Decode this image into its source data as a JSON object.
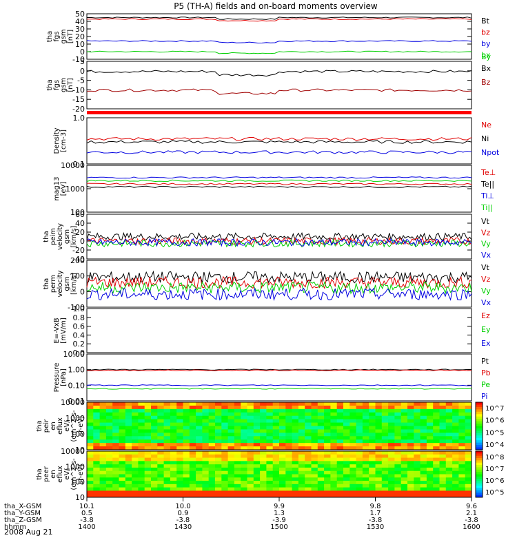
{
  "title": "P5 (TH-A) fields and on-board moments overview",
  "date": "2008 Aug 21",
  "colors": {
    "black": "#000000",
    "red": "#e00000",
    "blue": "#0000e0",
    "green": "#00d000",
    "darkred": "#a00000"
  },
  "chart_data": [
    {
      "id": "fgs",
      "type": "line",
      "ylabel": [
        "tha",
        "fgs",
        "gsm",
        "[nT]"
      ],
      "yticks": [
        "50",
        "40",
        "30",
        "20",
        "10",
        "0",
        "-10"
      ],
      "ylim": [
        -10,
        50
      ],
      "series": [
        {
          "name": "Bt",
          "color": "black",
          "base": 45
        },
        {
          "name": "bz",
          "color": "red",
          "base": 43
        },
        {
          "name": "by",
          "color": "blue",
          "base": 14
        },
        {
          "name": "bx",
          "color": "green",
          "base": 0
        }
      ],
      "extra_label": {
        "name": "By",
        "color": "green"
      }
    },
    {
      "id": "fgs2",
      "type": "line",
      "ylabel": [
        "tha",
        "fgs",
        "gsm",
        "[nT]"
      ],
      "yticks": [
        "5",
        "0",
        "-5",
        "-10",
        "-15",
        "-20"
      ],
      "ylim": [
        -22,
        6
      ],
      "series": [
        {
          "name": "Bx",
          "color": "black",
          "base": 0
        },
        {
          "name": "Bz",
          "color": "darkred",
          "base": -11
        }
      ]
    },
    {
      "id": "density",
      "type": "line",
      "log": true,
      "ylabel": [
        "Density",
        "[cm-3]"
      ],
      "yticks": [
        "1.0",
        "0.1"
      ],
      "ylim": [
        0.1,
        1.0
      ],
      "series": [
        {
          "name": "Ne",
          "color": "red",
          "base": 0.35
        },
        {
          "name": "Ni",
          "color": "black",
          "base": 0.3
        },
        {
          "name": "Npot",
          "color": "blue",
          "base": 0.18
        }
      ]
    },
    {
      "id": "temp",
      "type": "line",
      "log": true,
      "ylabel": [
        "mag13",
        "[eV]"
      ],
      "yticks": [
        "10000",
        "1000",
        "100"
      ],
      "ylim": [
        100,
        10000
      ],
      "series": [
        {
          "name": "Te⊥",
          "color": "red",
          "base": 1600
        },
        {
          "name": "Te||",
          "color": "black",
          "base": 1200
        },
        {
          "name": "Ti⊥",
          "color": "blue",
          "base": 3000
        },
        {
          "name": "Ti||",
          "color": "green",
          "base": 2200
        }
      ]
    },
    {
      "id": "peim",
      "type": "line",
      "ylabel": [
        "tha",
        "peim",
        "velocity",
        "gsm",
        "[km/s]"
      ],
      "yticks": [
        "60",
        "40",
        "20",
        "0",
        "-20",
        "-40"
      ],
      "ylim": [
        -40,
        60
      ],
      "series": [
        {
          "name": "Vt",
          "color": "black",
          "base": 10
        },
        {
          "name": "Vz",
          "color": "red",
          "base": 0
        },
        {
          "name": "Vy",
          "color": "green",
          "base": -5
        },
        {
          "name": "Vx",
          "color": "blue",
          "base": -3
        }
      ]
    },
    {
      "id": "perm",
      "type": "line",
      "ylabel": [
        "tha",
        "perm",
        "velocity",
        "gsm",
        "[km/s]"
      ],
      "yticks": [
        "200",
        "100",
        "0",
        "-100"
      ],
      "ylim": [
        -130,
        230
      ],
      "series": [
        {
          "name": "Vt",
          "color": "black",
          "base": 100
        },
        {
          "name": "Vz",
          "color": "red",
          "base": 60
        },
        {
          "name": "Vy",
          "color": "green",
          "base": 20
        },
        {
          "name": "Vx",
          "color": "blue",
          "base": -30
        }
      ]
    },
    {
      "id": "efield",
      "type": "line",
      "ylabel": [
        "E=-VxB",
        "[mV/m]"
      ],
      "yticks": [
        "1.0",
        "0.8",
        "0.6",
        "0.4",
        "0.2",
        "0.0"
      ],
      "ylim": [
        0,
        1
      ],
      "series": [
        {
          "name": "Ez",
          "color": "red"
        },
        {
          "name": "Ey",
          "color": "green"
        },
        {
          "name": "Ex",
          "color": "blue"
        }
      ]
    },
    {
      "id": "pressure",
      "type": "line",
      "log": true,
      "ylabel": [
        "Pressure",
        "[nPa]"
      ],
      "yticks": [
        "10.00",
        "1.00",
        "0.10",
        "0.01"
      ],
      "ylim": [
        0.01,
        10
      ],
      "series": [
        {
          "name": "Pt",
          "color": "black",
          "base": 1.0
        },
        {
          "name": "Pb",
          "color": "red",
          "base": 0.9
        },
        {
          "name": "Pe",
          "color": "green",
          "base": 0.06
        },
        {
          "name": "Pi",
          "color": "blue",
          "base": 0.1
        }
      ]
    },
    {
      "id": "peir",
      "type": "heatmap",
      "ylabel": [
        "tha",
        "peir",
        "en",
        "eflux",
        "eV/",
        "(cm^2-s-",
        "sr-eV)"
      ],
      "yticks": [
        "10000",
        "1000",
        "100",
        "10"
      ],
      "colorbar": [
        "10^7",
        "10^6",
        "10^5",
        "10^4"
      ]
    },
    {
      "id": "peer",
      "type": "heatmap",
      "ylabel": [
        "tha",
        "peer",
        "en",
        "eflux",
        "eV/",
        "(cm^2-s-",
        "sr-eV)"
      ],
      "yticks": [
        "10000",
        "1000",
        "100",
        "10"
      ],
      "colorbar": [
        "10^8",
        "10^7",
        "10^6",
        "10^5"
      ]
    }
  ],
  "xaxis": {
    "row_labels": [
      "tha_X-GSM",
      "tha_Y-GSM",
      "tha_Z-GSM",
      "hhmm"
    ],
    "columns": [
      {
        "x": "10.1",
        "y": "0.5",
        "z": "-3.8",
        "t": "1400"
      },
      {
        "x": "10.0",
        "y": "0.9",
        "z": "-3.8",
        "t": "1430"
      },
      {
        "x": "9.9",
        "y": "1.3",
        "z": "-3.9",
        "t": "1500"
      },
      {
        "x": "9.8",
        "y": "1.7",
        "z": "-3.8",
        "t": "1530"
      },
      {
        "x": "9.6",
        "y": "2.1",
        "z": "-3.8",
        "t": "1600"
      }
    ]
  }
}
